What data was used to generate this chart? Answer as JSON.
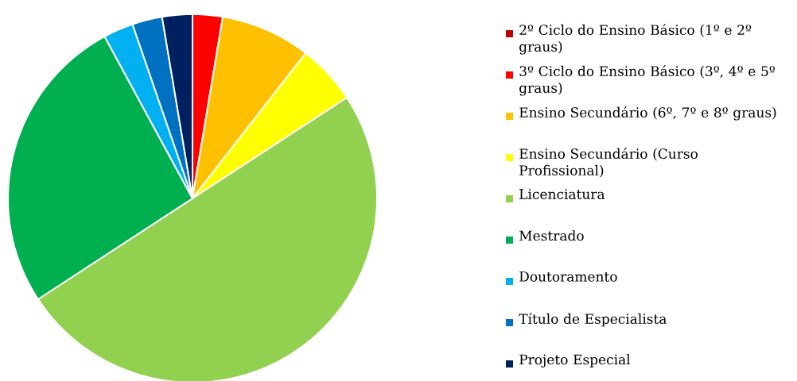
{
  "chart_data": {
    "type": "pie",
    "categories": [
      "2º Ciclo do Ensino Básico (1º e 2º graus)",
      "3º Ciclo do Ensino Básico (3º, 4º e 5º graus)",
      "Ensino Secundário (6º, 7º e 8º graus)",
      "Ensino Secundário (Curso Profissional)",
      "Licenciatura",
      "Mestrado",
      "Doutoramento",
      "Título de Especialista",
      "Projeto Especial"
    ],
    "values": [
      0,
      2.63,
      7.89,
      5.26,
      50.0,
      26.32,
      2.63,
      2.63,
      2.64
    ],
    "colors": [
      "#c00000",
      "#ff0000",
      "#ffc000",
      "#ffff00",
      "#92d050",
      "#00b050",
      "#00b0f0",
      "#0070c0",
      "#002060"
    ],
    "legend": "right"
  }
}
